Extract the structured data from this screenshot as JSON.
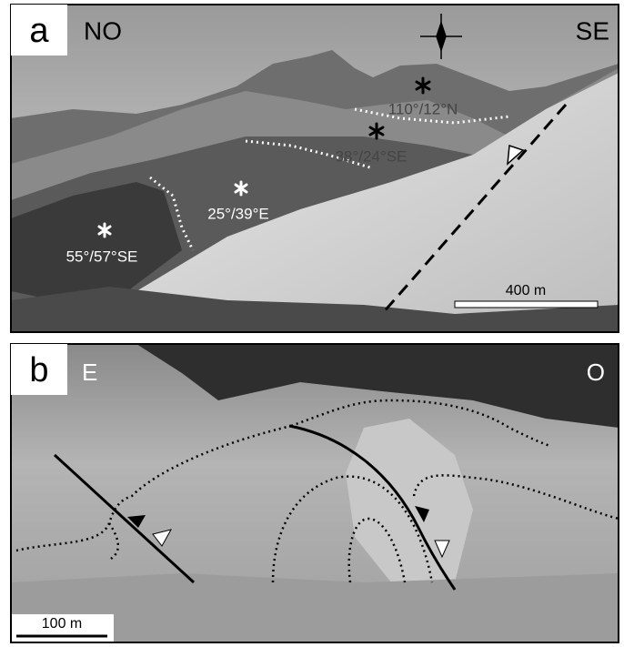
{
  "panels": [
    {
      "label": "a",
      "left": "NO",
      "right": "SE",
      "annotations": [
        "110°/12°N",
        "38°/24°SE",
        "25°/39°E",
        "55°/57°SE"
      ],
      "scale_bar": "400 m"
    },
    {
      "label": "b",
      "left": "E",
      "right": "O",
      "scale_bar": "100 m"
    }
  ]
}
